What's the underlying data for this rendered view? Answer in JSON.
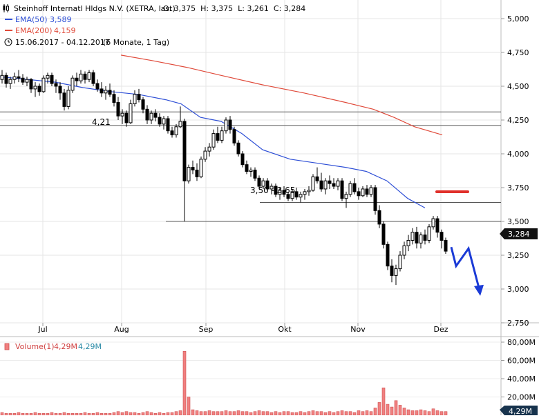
{
  "header": {
    "instrument": "Steinhoff Internatl Hldgs N.V. (XETRA, last)",
    "ohlc": "O: 3,375  H: 3,375  L: 3,261  C: 3,284",
    "ema50_label": "EMA(50)",
    "ema50_value": "3,589",
    "ema200_label": "EMA(200)",
    "ema200_value": "4,159",
    "date_range": "15.06.2017 - 04.12.2017",
    "period": "(6 Monate, 1 Tag)"
  },
  "price_badge": "3,284",
  "annotations": {
    "support_label": "4,21",
    "zone_label": "3,50 - 3,65"
  },
  "volume_panel": {
    "label": "Volume(1)",
    "value_red": "4,29M",
    "value_blue": "4,29M",
    "badge": "4,29M",
    "ticks": [
      "80,00M",
      "60,00M",
      "40,00M",
      "20,00M"
    ]
  },
  "colors": {
    "ema50": "#2e4fd6",
    "ema200": "#e04a3a",
    "candle": "#000000",
    "volume_bar": "#f08080",
    "forecast_arrow": "#1a3ad6",
    "resistance_marker": "#e0302a",
    "badge_bg": "#111111"
  },
  "chart_data": {
    "type": "candlestick",
    "x_ticks": [
      "Jul",
      "Aug",
      "Sep",
      "Okt",
      "Nov",
      "Dez"
    ],
    "y_ticks": [
      "5,000",
      "4,750",
      "4,500",
      "4,250",
      "4,000",
      "3,750",
      "3,500",
      "3,250",
      "3,000",
      "2,750"
    ],
    "ylim": [
      2.7,
      5.1
    ],
    "horizontal_levels": [
      4.31,
      4.21,
      3.64,
      3.5
    ],
    "series": [
      {
        "name": "EMA(50)",
        "points": [
          [
            0,
            4.57
          ],
          [
            40,
            4.55
          ],
          [
            80,
            4.53
          ],
          [
            120,
            4.49
          ],
          [
            160,
            4.46
          ],
          [
            200,
            4.44
          ],
          [
            240,
            4.4
          ],
          [
            262,
            4.37
          ],
          [
            290,
            4.27
          ],
          [
            320,
            4.24
          ],
          [
            350,
            4.15
          ],
          [
            380,
            4.03
          ],
          [
            420,
            3.96
          ],
          [
            460,
            3.93
          ],
          [
            500,
            3.9
          ],
          [
            530,
            3.87
          ],
          [
            560,
            3.8
          ],
          [
            590,
            3.67
          ],
          [
            615,
            3.6
          ]
        ]
      },
      {
        "name": "EMA(200)",
        "points": [
          [
            175,
            4.73
          ],
          [
            220,
            4.69
          ],
          [
            270,
            4.64
          ],
          [
            320,
            4.58
          ],
          [
            380,
            4.51
          ],
          [
            440,
            4.45
          ],
          [
            500,
            4.38
          ],
          [
            540,
            4.33
          ],
          [
            570,
            4.27
          ],
          [
            600,
            4.2
          ],
          [
            640,
            4.14
          ]
        ]
      }
    ],
    "candles": [
      [
        3,
        4.55,
        4.62,
        4.52,
        4.58
      ],
      [
        9,
        4.58,
        4.6,
        4.49,
        4.52
      ],
      [
        15,
        4.52,
        4.57,
        4.48,
        4.55
      ],
      [
        21,
        4.55,
        4.6,
        4.52,
        4.57
      ],
      [
        27,
        4.57,
        4.62,
        4.53,
        4.56
      ],
      [
        33,
        4.56,
        4.59,
        4.51,
        4.53
      ],
      [
        39,
        4.53,
        4.57,
        4.5,
        4.55
      ],
      [
        45,
        4.55,
        4.56,
        4.45,
        4.48
      ],
      [
        51,
        4.48,
        4.53,
        4.42,
        4.5
      ],
      [
        57,
        4.5,
        4.52,
        4.43,
        4.46
      ],
      [
        63,
        4.46,
        4.58,
        4.45,
        4.56
      ],
      [
        69,
        4.56,
        4.6,
        4.52,
        4.58
      ],
      [
        75,
        4.58,
        4.6,
        4.5,
        4.52
      ],
      [
        81,
        4.52,
        4.55,
        4.45,
        4.5
      ],
      [
        87,
        4.5,
        4.53,
        4.4,
        4.45
      ],
      [
        93,
        4.45,
        4.48,
        4.32,
        4.35
      ],
      [
        99,
        4.35,
        4.5,
        4.33,
        4.47
      ],
      [
        105,
        4.47,
        4.58,
        4.45,
        4.56
      ],
      [
        111,
        4.56,
        4.6,
        4.5,
        4.54
      ],
      [
        117,
        4.54,
        4.62,
        4.52,
        4.59
      ],
      [
        123,
        4.59,
        4.61,
        4.52,
        4.55
      ],
      [
        129,
        4.55,
        4.62,
        4.53,
        4.6
      ],
      [
        135,
        4.6,
        4.62,
        4.5,
        4.52
      ],
      [
        141,
        4.52,
        4.55,
        4.46,
        4.48
      ],
      [
        147,
        4.48,
        4.53,
        4.42,
        4.45
      ],
      [
        153,
        4.45,
        4.5,
        4.4,
        4.47
      ],
      [
        159,
        4.47,
        4.52,
        4.42,
        4.44
      ],
      [
        165,
        4.44,
        4.47,
        4.35,
        4.38
      ],
      [
        171,
        4.38,
        4.42,
        4.25,
        4.28
      ],
      [
        177,
        4.28,
        4.33,
        4.22,
        4.3
      ],
      [
        183,
        4.3,
        4.32,
        4.2,
        4.23
      ],
      [
        189,
        4.23,
        4.4,
        4.22,
        4.37
      ],
      [
        195,
        4.37,
        4.47,
        4.35,
        4.44
      ],
      [
        201,
        4.44,
        4.48,
        4.38,
        4.4
      ],
      [
        207,
        4.4,
        4.42,
        4.3,
        4.33
      ],
      [
        213,
        4.33,
        4.36,
        4.22,
        4.25
      ],
      [
        219,
        4.25,
        4.32,
        4.22,
        4.3
      ],
      [
        225,
        4.3,
        4.33,
        4.24,
        4.27
      ],
      [
        231,
        4.27,
        4.3,
        4.2,
        4.22
      ],
      [
        237,
        4.22,
        4.28,
        4.18,
        4.26
      ],
      [
        243,
        4.26,
        4.28,
        4.15,
        4.17
      ],
      [
        249,
        4.17,
        4.2,
        4.12,
        4.14
      ],
      [
        255,
        4.14,
        4.22,
        4.12,
        4.2
      ],
      [
        261,
        4.2,
        4.35,
        4.19,
        4.24
      ],
      [
        267,
        4.24,
        4.26,
        3.5,
        3.8
      ],
      [
        273,
        3.8,
        3.92,
        3.78,
        3.9
      ],
      [
        279,
        3.9,
        3.95,
        3.85,
        3.88
      ],
      [
        285,
        3.88,
        3.93,
        3.8,
        3.83
      ],
      [
        291,
        3.83,
        3.98,
        3.82,
        3.96
      ],
      [
        297,
        3.96,
        4.05,
        3.94,
        4.02
      ],
      [
        303,
        4.02,
        4.08,
        3.98,
        4.05
      ],
      [
        309,
        4.05,
        4.18,
        4.03,
        4.15
      ],
      [
        315,
        4.15,
        4.2,
        4.08,
        4.1
      ],
      [
        321,
        4.1,
        4.2,
        4.08,
        4.17
      ],
      [
        327,
        4.17,
        4.27,
        4.15,
        4.25
      ],
      [
        333,
        4.25,
        4.28,
        4.15,
        4.18
      ],
      [
        339,
        4.18,
        4.2,
        4.06,
        4.08
      ],
      [
        345,
        4.08,
        4.1,
        3.98,
        4.0
      ],
      [
        351,
        4.0,
        4.02,
        3.9,
        3.92
      ],
      [
        357,
        3.92,
        3.95,
        3.85,
        3.87
      ],
      [
        363,
        3.87,
        3.9,
        3.83,
        3.88
      ],
      [
        369,
        3.88,
        3.9,
        3.8,
        3.82
      ],
      [
        375,
        3.82,
        3.84,
        3.74,
        3.76
      ],
      [
        381,
        3.76,
        3.82,
        3.74,
        3.8
      ],
      [
        387,
        3.8,
        3.82,
        3.72,
        3.74
      ],
      [
        393,
        3.74,
        3.78,
        3.7,
        3.76
      ],
      [
        399,
        3.76,
        3.78,
        3.68,
        3.7
      ],
      [
        405,
        3.7,
        3.75,
        3.66,
        3.73
      ],
      [
        411,
        3.73,
        3.76,
        3.68,
        3.7
      ],
      [
        417,
        3.7,
        3.72,
        3.65,
        3.67
      ],
      [
        423,
        3.67,
        3.74,
        3.65,
        3.72
      ],
      [
        429,
        3.72,
        3.75,
        3.66,
        3.68
      ],
      [
        435,
        3.68,
        3.72,
        3.64,
        3.7
      ],
      [
        441,
        3.7,
        3.74,
        3.66,
        3.72
      ],
      [
        447,
        3.72,
        3.76,
        3.69,
        3.73
      ],
      [
        453,
        3.73,
        3.85,
        3.72,
        3.83
      ],
      [
        459,
        3.83,
        3.9,
        3.78,
        3.8
      ],
      [
        465,
        3.8,
        3.86,
        3.72,
        3.74
      ],
      [
        471,
        3.74,
        3.82,
        3.7,
        3.8
      ],
      [
        477,
        3.8,
        3.84,
        3.74,
        3.78
      ],
      [
        483,
        3.78,
        3.82,
        3.74,
        3.76
      ],
      [
        489,
        3.76,
        3.82,
        3.73,
        3.8
      ],
      [
        495,
        3.8,
        3.82,
        3.65,
        3.67
      ],
      [
        501,
        3.67,
        3.72,
        3.6,
        3.7
      ],
      [
        507,
        3.7,
        3.8,
        3.68,
        3.78
      ],
      [
        513,
        3.78,
        3.82,
        3.7,
        3.72
      ],
      [
        519,
        3.72,
        3.75,
        3.66,
        3.69
      ],
      [
        525,
        3.69,
        3.76,
        3.68,
        3.74
      ],
      [
        531,
        3.74,
        3.77,
        3.68,
        3.7
      ],
      [
        537,
        3.7,
        3.77,
        3.68,
        3.75
      ],
      [
        543,
        3.75,
        3.77,
        3.55,
        3.58
      ],
      [
        549,
        3.58,
        3.62,
        3.45,
        3.48
      ],
      [
        555,
        3.48,
        3.5,
        3.3,
        3.33
      ],
      [
        561,
        3.33,
        3.35,
        3.14,
        3.17
      ],
      [
        567,
        3.17,
        3.22,
        3.05,
        3.1
      ],
      [
        573,
        3.1,
        3.18,
        3.03,
        3.15
      ],
      [
        579,
        3.15,
        3.28,
        3.13,
        3.25
      ],
      [
        585,
        3.25,
        3.35,
        3.22,
        3.32
      ],
      [
        591,
        3.32,
        3.4,
        3.28,
        3.36
      ],
      [
        597,
        3.36,
        3.45,
        3.33,
        3.42
      ],
      [
        603,
        3.42,
        3.46,
        3.3,
        3.34
      ],
      [
        609,
        3.34,
        3.42,
        3.3,
        3.4
      ],
      [
        615,
        3.4,
        3.44,
        3.33,
        3.36
      ],
      [
        621,
        3.36,
        3.48,
        3.34,
        3.46
      ],
      [
        627,
        3.46,
        3.54,
        3.44,
        3.52
      ],
      [
        633,
        3.52,
        3.54,
        3.38,
        3.42
      ],
      [
        639,
        3.42,
        3.44,
        3.3,
        3.36
      ],
      [
        645,
        3.36,
        3.38,
        3.26,
        3.28
      ]
    ],
    "forecast_path": [
      [
        653,
        3.31
      ],
      [
        660,
        3.17
      ],
      [
        678,
        3.3
      ],
      [
        695,
        2.97
      ]
    ],
    "volume": {
      "ylim": [
        0,
        85
      ],
      "y_ticks": [
        80,
        60,
        40,
        20
      ],
      "bars": [
        [
          3,
          3
        ],
        [
          9,
          2
        ],
        [
          15,
          2
        ],
        [
          21,
          2
        ],
        [
          27,
          3
        ],
        [
          33,
          2
        ],
        [
          39,
          2
        ],
        [
          45,
          2
        ],
        [
          51,
          3
        ],
        [
          57,
          2
        ],
        [
          63,
          2
        ],
        [
          69,
          2
        ],
        [
          75,
          3
        ],
        [
          81,
          2
        ],
        [
          87,
          2
        ],
        [
          93,
          3
        ],
        [
          99,
          2
        ],
        [
          105,
          2
        ],
        [
          111,
          2
        ],
        [
          117,
          2
        ],
        [
          123,
          3
        ],
        [
          129,
          2
        ],
        [
          135,
          2
        ],
        [
          141,
          3
        ],
        [
          147,
          2
        ],
        [
          153,
          2
        ],
        [
          159,
          2
        ],
        [
          165,
          3
        ],
        [
          171,
          4
        ],
        [
          177,
          3
        ],
        [
          183,
          4
        ],
        [
          189,
          3
        ],
        [
          195,
          3
        ],
        [
          201,
          2
        ],
        [
          207,
          3
        ],
        [
          213,
          4
        ],
        [
          219,
          3
        ],
        [
          225,
          2
        ],
        [
          231,
          3
        ],
        [
          237,
          2
        ],
        [
          243,
          3
        ],
        [
          249,
          3
        ],
        [
          255,
          4
        ],
        [
          261,
          5
        ],
        [
          267,
          70
        ],
        [
          273,
          20
        ],
        [
          279,
          6
        ],
        [
          285,
          5
        ],
        [
          291,
          4
        ],
        [
          297,
          4
        ],
        [
          303,
          5
        ],
        [
          309,
          4
        ],
        [
          315,
          4
        ],
        [
          321,
          4
        ],
        [
          327,
          5
        ],
        [
          333,
          4
        ],
        [
          339,
          4
        ],
        [
          345,
          5
        ],
        [
          351,
          4
        ],
        [
          357,
          4
        ],
        [
          363,
          3
        ],
        [
          369,
          4
        ],
        [
          375,
          5
        ],
        [
          381,
          4
        ],
        [
          387,
          4
        ],
        [
          393,
          3
        ],
        [
          399,
          4
        ],
        [
          405,
          3
        ],
        [
          411,
          4
        ],
        [
          417,
          4
        ],
        [
          423,
          3
        ],
        [
          429,
          3
        ],
        [
          435,
          4
        ],
        [
          441,
          3
        ],
        [
          447,
          4
        ],
        [
          453,
          5
        ],
        [
          459,
          4
        ],
        [
          465,
          4
        ],
        [
          471,
          3
        ],
        [
          477,
          4
        ],
        [
          483,
          3
        ],
        [
          489,
          4
        ],
        [
          495,
          5
        ],
        [
          501,
          4
        ],
        [
          507,
          4
        ],
        [
          513,
          3
        ],
        [
          519,
          5
        ],
        [
          525,
          4
        ],
        [
          531,
          5
        ],
        [
          537,
          4
        ],
        [
          543,
          8
        ],
        [
          549,
          14
        ],
        [
          555,
          30
        ],
        [
          561,
          12
        ],
        [
          567,
          9
        ],
        [
          573,
          16
        ],
        [
          579,
          11
        ],
        [
          585,
          8
        ],
        [
          591,
          6
        ],
        [
          597,
          5
        ],
        [
          603,
          5
        ],
        [
          609,
          6
        ],
        [
          615,
          5
        ],
        [
          621,
          4
        ],
        [
          627,
          7
        ],
        [
          633,
          5
        ],
        [
          639,
          4
        ],
        [
          645,
          4
        ]
      ]
    }
  }
}
